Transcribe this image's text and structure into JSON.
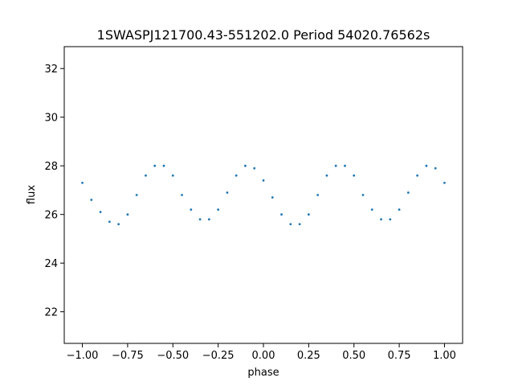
{
  "chart_data": {
    "type": "scatter",
    "title": "1SWASPJ121700.43-551202.0 Period 54020.76562s",
    "xlabel": "phase",
    "ylabel": "flux",
    "xlim": [
      -1.1,
      1.1
    ],
    "ylim": [
      20.7,
      32.9
    ],
    "x_ticks": [
      -1.0,
      -0.75,
      -0.5,
      -0.25,
      0.0,
      0.25,
      0.5,
      0.75,
      1.0
    ],
    "x_tick_labels": [
      "−1.00",
      "−0.75",
      "−0.50",
      "−0.25",
      "0.00",
      "0.25",
      "0.50",
      "0.75",
      "1.00"
    ],
    "y_ticks": [
      22,
      24,
      26,
      28,
      30,
      32
    ],
    "y_tick_labels": [
      "22",
      "24",
      "26",
      "28",
      "30",
      "32"
    ],
    "grid": false,
    "legend": "none",
    "marker_color": "#1f77b4",
    "series": [
      {
        "x": [
          -1.0,
          -0.95,
          -0.9,
          -0.85,
          -0.8,
          -0.75,
          -0.7,
          -0.65,
          -0.6,
          -0.55,
          -0.5,
          -0.45,
          -0.4,
          -0.35,
          -0.3,
          -0.25,
          -0.2,
          -0.15,
          -0.1,
          -0.05,
          0.0,
          0.05,
          0.1,
          0.15,
          0.2,
          0.25,
          0.3,
          0.35,
          0.4,
          0.45,
          0.5,
          0.55,
          0.6,
          0.65,
          0.7,
          0.75,
          0.8,
          0.85,
          0.9,
          0.95,
          1.0
        ],
        "y": [
          27.3,
          26.6,
          26.1,
          25.7,
          25.6,
          26.0,
          26.8,
          27.6,
          28.0,
          28.0,
          27.6,
          26.8,
          26.2,
          25.8,
          25.8,
          26.2,
          26.9,
          27.6,
          28.0,
          27.9,
          27.4,
          26.7,
          26.0,
          25.6,
          25.6,
          26.0,
          26.8,
          27.6,
          28.0,
          28.0,
          27.6,
          26.8,
          26.2,
          25.8,
          25.8,
          26.2,
          26.9,
          27.6,
          28.0,
          27.9,
          27.3
        ]
      }
    ]
  }
}
